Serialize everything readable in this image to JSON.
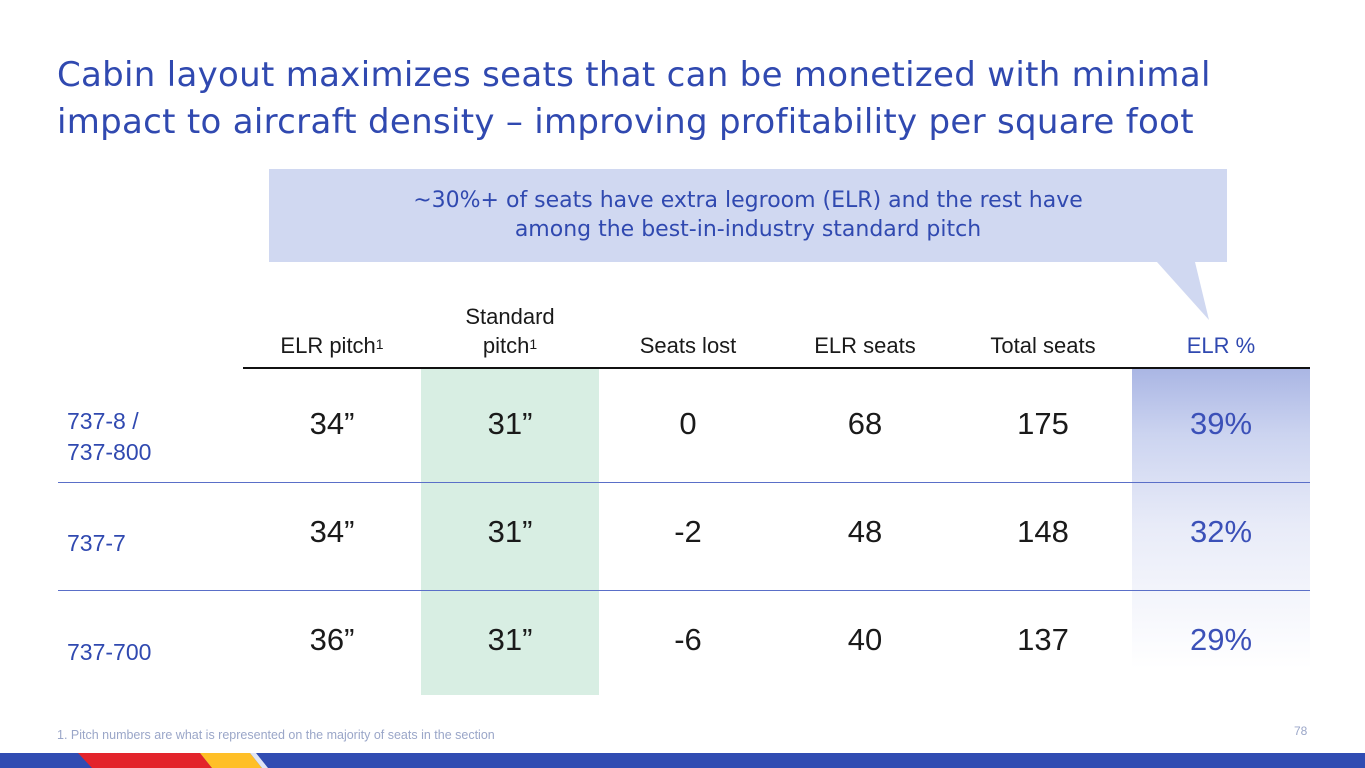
{
  "title": "Cabin layout maximizes seats that can be monetized with minimal impact to aircraft density – improving profitability per square foot",
  "callout": {
    "line1": "~30%+ of seats have extra legroom (ELR) and the rest have",
    "line2": "among the best-in-industry standard pitch"
  },
  "table": {
    "headers": {
      "elr_pitch": "ELR pitch",
      "standard_line1": "Standard",
      "standard_line2": "pitch",
      "footnote_marker": "1",
      "seats_lost": "Seats lost",
      "elr_seats": "ELR seats",
      "total_seats": "Total seats",
      "elr_percent": "ELR %"
    },
    "rows": [
      {
        "label_line1": "737-8 /",
        "label_line2": "737-800",
        "elr_pitch": "34”",
        "standard_pitch": "31”",
        "seats_lost": "0",
        "elr_seats": "68",
        "total_seats": "175",
        "elr_percent": "39%"
      },
      {
        "label": "737-7",
        "elr_pitch": "34”",
        "standard_pitch": "31”",
        "seats_lost": "-2",
        "elr_seats": "48",
        "total_seats": "148",
        "elr_percent": "32%"
      },
      {
        "label": "737-700",
        "elr_pitch": "36”",
        "standard_pitch": "31”",
        "seats_lost": "-6",
        "elr_seats": "40",
        "total_seats": "137",
        "elr_percent": "29%"
      }
    ]
  },
  "footnote": "1. Pitch numbers are what is represented on the majority of seats in the section",
  "page_number": "78",
  "colors": {
    "title_blue": "#3049b0",
    "callout_bg": "#d0d8f1",
    "standard_column_bg": "#d8eee3",
    "elr_column_top": "#aab6e4",
    "bar_blue": "#304cb2",
    "bar_red": "#e3242b",
    "bar_yellow": "#ffbf27"
  }
}
